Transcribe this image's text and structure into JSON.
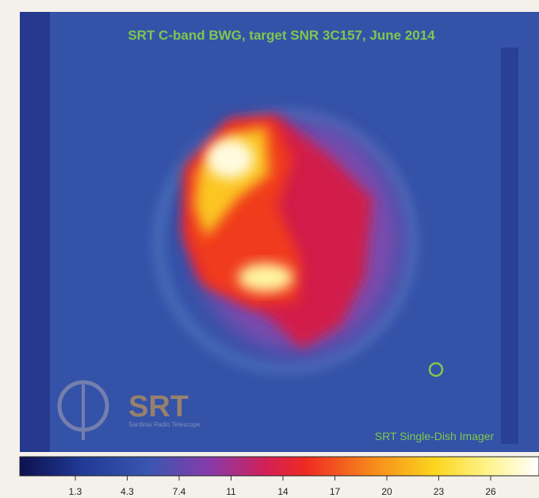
{
  "image": {
    "title": "SRT C-band BWG,  target SNR 3C157, June 2014",
    "caption": "SRT Single-Dish Imager",
    "logo": {
      "name": "SRT",
      "subtitle": "Sardinia Radio Telescope"
    }
  },
  "colorbar": {
    "ticks": [
      "1.3",
      "4.3",
      "7.4",
      "11",
      "14",
      "17",
      "20",
      "23",
      "26"
    ]
  }
}
